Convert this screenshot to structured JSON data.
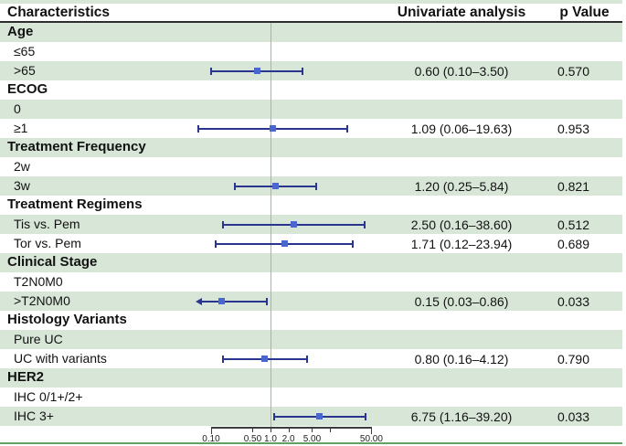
{
  "header": {
    "characteristics": "Characteristics",
    "univariate": "Univariate analysis",
    "p_value": "p Value"
  },
  "chart_data": {
    "type": "forest",
    "title": "Univariate analysis forest plot",
    "x_axis": {
      "scale": "log",
      "range": [
        0.1,
        50.0
      ],
      "reference_line": 1.0,
      "ticks": [
        {
          "value": 0.1,
          "label": "0.10"
        },
        {
          "value": 0.5,
          "label": "0.50"
        },
        {
          "value": 1.0,
          "label": "1.0"
        },
        {
          "value": 2.0,
          "label": "2.0"
        },
        {
          "value": 5.0,
          "label": "5.00"
        },
        {
          "value": 10.0,
          "label": ""
        },
        {
          "value": 50.0,
          "label": "50.00"
        }
      ]
    },
    "rows": [
      {
        "label": "Age",
        "type": "category"
      },
      {
        "label": "≤65",
        "type": "item"
      },
      {
        "label": ">65",
        "type": "item",
        "estimate": 0.6,
        "ci_low": 0.1,
        "ci_high": 3.5,
        "estimate_text": "0.60 (0.10–3.50)",
        "p_value": "0.570"
      },
      {
        "label": "ECOG",
        "type": "category"
      },
      {
        "label": "0",
        "type": "item"
      },
      {
        "label": "≥1",
        "type": "item",
        "estimate": 1.09,
        "ci_low": 0.06,
        "ci_high": 19.63,
        "estimate_text": "1.09 (0.06–19.63)",
        "p_value": "0.953"
      },
      {
        "label": "Treatment Frequency",
        "type": "category"
      },
      {
        "label": "2w",
        "type": "item"
      },
      {
        "label": "3w",
        "type": "item",
        "estimate": 1.2,
        "ci_low": 0.25,
        "ci_high": 5.84,
        "estimate_text": "1.20 (0.25–5.84)",
        "p_value": "0.821"
      },
      {
        "label": "Treatment Regimens",
        "type": "category"
      },
      {
        "label": "Tis vs. Pem",
        "type": "item",
        "estimate": 2.5,
        "ci_low": 0.16,
        "ci_high": 38.6,
        "estimate_text": "2.50 (0.16–38.60)",
        "p_value": "0.512"
      },
      {
        "label": "Tor vs. Pem",
        "type": "item",
        "estimate": 1.71,
        "ci_low": 0.12,
        "ci_high": 23.94,
        "estimate_text": "1.71 (0.12–23.94)",
        "p_value": "0.689"
      },
      {
        "label": "Clinical Stage",
        "type": "category"
      },
      {
        "label": "T2N0M0",
        "type": "item"
      },
      {
        "label": ">T2N0M0",
        "type": "item",
        "estimate": 0.15,
        "ci_low": 0.03,
        "ci_high": 0.86,
        "clipped_low": true,
        "estimate_text": "0.15 (0.03–0.86)",
        "p_value": "0.033"
      },
      {
        "label": "Histology Variants",
        "type": "category"
      },
      {
        "label": "Pure UC",
        "type": "item"
      },
      {
        "label": "UC with variants",
        "type": "item",
        "estimate": 0.8,
        "ci_low": 0.16,
        "ci_high": 4.12,
        "estimate_text": "0.80 (0.16–4.12)",
        "p_value": "0.790"
      },
      {
        "label": "HER2",
        "type": "category"
      },
      {
        "label": "IHC 0/1+/2+",
        "type": "item"
      },
      {
        "label": "IHC 3+",
        "type": "item",
        "estimate": 6.75,
        "ci_low": 1.16,
        "ci_high": 39.2,
        "estimate_text": "6.75 (1.16–39.20)",
        "p_value": "0.033"
      }
    ],
    "colors": {
      "row_band": "#d8e6d8",
      "ci_line": "#2a3590",
      "marker": "#4a67cf",
      "reference_line": "#a9b2a9",
      "axis": "#3c3c3c",
      "top_border": "#d8e6d8",
      "bottom_border": "#63a063"
    }
  }
}
